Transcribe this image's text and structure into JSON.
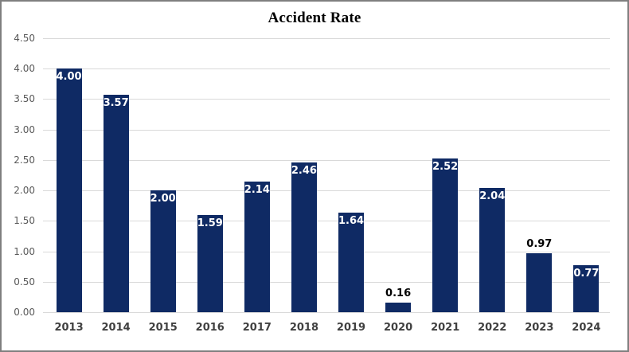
{
  "window": {
    "border_color": "#7f7f7f",
    "background_color": "#ffffff"
  },
  "chart_data": {
    "type": "bar",
    "title": "Accident Rate",
    "xlabel": "",
    "ylabel": "",
    "categories": [
      "2013",
      "2014",
      "2015",
      "2016",
      "2017",
      "2018",
      "2019",
      "2020",
      "2021",
      "2022",
      "2023",
      "2024"
    ],
    "values": [
      4.0,
      3.57,
      2.0,
      1.59,
      2.14,
      2.46,
      1.64,
      0.16,
      2.52,
      2.04,
      0.97,
      0.77
    ],
    "data_labels": [
      "4.00",
      "3.57",
      "2.00",
      "1.59",
      "2.14",
      "2.46",
      "1.64",
      "0.16",
      "2.52",
      "2.04",
      "0.97",
      "0.77"
    ],
    "data_label_positions": [
      "inside",
      "inside",
      "inside",
      "inside",
      "inside",
      "inside",
      "inside",
      "outside",
      "inside",
      "inside",
      "outside",
      "inside"
    ],
    "ylim": [
      0,
      4.5
    ],
    "ytick_labels": [
      "4.50",
      "4.00",
      "3.50",
      "3.00",
      "2.50",
      "2.00",
      "1.50",
      "1.00",
      "0.50",
      "0.00"
    ],
    "grid": true,
    "legend": "none",
    "colors": {
      "bar": "#0f2a64",
      "gridline": "#d9d9d9",
      "y_tick_text": "#595959",
      "x_tick_text": "#404040",
      "title_text": "#000000",
      "label_inside": "#ffffff",
      "label_outside": "#000000"
    }
  }
}
